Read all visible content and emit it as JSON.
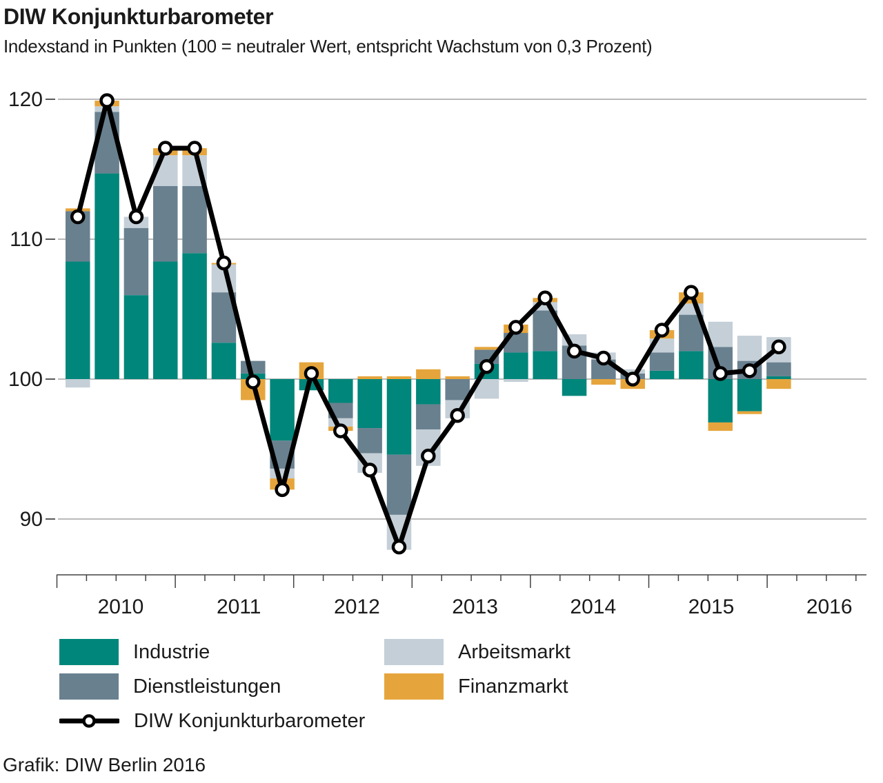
{
  "header": {
    "title": "DIW Konjunkturbarometer",
    "subtitle": "Indexstand in Punkten (100 = neutraler Wert, entspricht Wachstum von 0,3 Prozent)"
  },
  "footer": {
    "credit": "Grafik: DIW Berlin 2016"
  },
  "chart_data": {
    "type": "bar",
    "subtype": "stacked-bars-with-line-overlay",
    "title": "DIW Konjunkturbarometer",
    "subtitle": "Indexstand in Punkten (100 = neutraler Wert, entspricht Wachstum von 0,3 Prozent)",
    "baseline": 100,
    "unit": "Indexpunkte, Abweichung vom neutralen Wert 100",
    "grid": "horizontal",
    "legend_position": "bottom",
    "ylim": [
      86,
      121
    ],
    "yticks": [
      90,
      100,
      110,
      120
    ],
    "x_year_labels": [
      "2010",
      "2011",
      "2012",
      "2013",
      "2014",
      "2015",
      "2016"
    ],
    "categories": [
      "2010 Q1",
      "2010 Q2",
      "2010 Q3",
      "2010 Q4",
      "2011 Q1",
      "2011 Q2",
      "2011 Q3",
      "2011 Q4",
      "2012 Q1",
      "2012 Q2",
      "2012 Q3",
      "2012 Q4",
      "2013 Q1",
      "2013 Q2",
      "2013 Q3",
      "2013 Q4",
      "2014 Q1",
      "2014 Q2",
      "2014 Q3",
      "2014 Q4",
      "2015 Q1",
      "2015 Q2",
      "2015 Q3",
      "2015 Q4",
      "2016 Q1"
    ],
    "series": [
      {
        "name": "Industrie",
        "color": "#00867A",
        "values": [
          8.4,
          14.7,
          6.0,
          8.4,
          9.0,
          2.6,
          0.4,
          -4.4,
          -0.8,
          -1.7,
          -3.5,
          -5.4,
          -1.8,
          0.0,
          1.1,
          1.9,
          2.0,
          -1.2,
          0.0,
          0.0,
          0.6,
          2.0,
          -3.1,
          -2.3,
          0.2
        ]
      },
      {
        "name": "Dienstleistungen",
        "color": "#69808F",
        "values": [
          3.6,
          4.4,
          4.8,
          5.4,
          4.8,
          3.6,
          0.9,
          -2.0,
          0.0,
          -1.1,
          -1.8,
          -4.3,
          -1.8,
          -1.5,
          1.0,
          1.4,
          2.9,
          2.4,
          1.4,
          0.4,
          1.3,
          2.6,
          2.3,
          1.3,
          1.0
        ]
      },
      {
        "name": "Arbeitsmarkt",
        "color": "#C4CFD7",
        "values": [
          -0.6,
          0.4,
          0.8,
          2.2,
          2.2,
          2.0,
          0.0,
          -0.7,
          0.0,
          -0.6,
          -1.4,
          -2.5,
          -2.6,
          -1.3,
          -1.4,
          -0.2,
          0.6,
          0.8,
          0.5,
          0.3,
          1.0,
          0.8,
          1.8,
          1.8,
          1.8
        ]
      },
      {
        "name": "Finanzmarkt",
        "color": "#E6A53C",
        "values": [
          0.2,
          0.4,
          0.0,
          0.5,
          0.5,
          0.1,
          -1.5,
          -0.8,
          1.2,
          -0.3,
          0.2,
          0.2,
          0.7,
          0.2,
          0.2,
          0.6,
          0.3,
          0.0,
          -0.4,
          -0.7,
          0.6,
          0.8,
          -0.6,
          -0.2,
          -0.7
        ]
      }
    ],
    "line_series": {
      "name": "DIW Konjunkturbarometer",
      "color": "#000000",
      "marker": "white-circle",
      "values": [
        111.6,
        119.9,
        111.6,
        116.5,
        116.5,
        108.3,
        99.8,
        92.1,
        100.4,
        96.3,
        93.5,
        88.0,
        94.5,
        97.4,
        100.9,
        103.7,
        105.8,
        102.0,
        101.5,
        100.0,
        103.5,
        106.2,
        100.4,
        100.6,
        102.3
      ]
    }
  }
}
